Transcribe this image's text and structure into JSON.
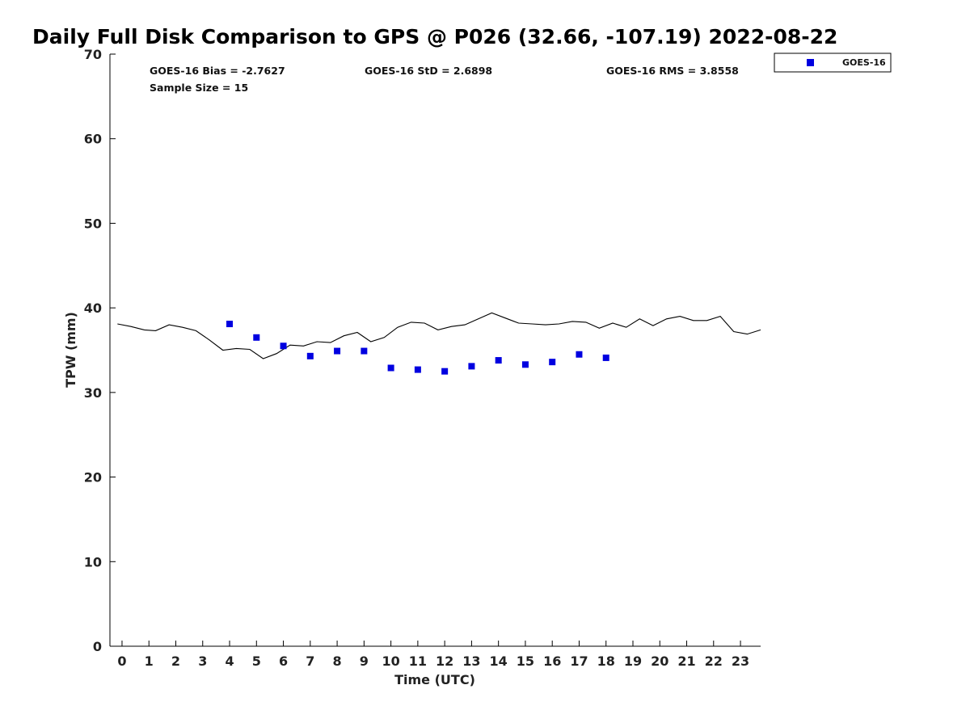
{
  "chart_data": {
    "type": "scatter",
    "title": "Daily Full Disk Comparison to GPS @ P026 (32.66, -107.19) 2022-08-22",
    "xlabel": "Time (UTC)",
    "ylabel": "TPW (mm)",
    "xlim": [
      -0.45,
      23.75
    ],
    "ylim": [
      0,
      70
    ],
    "x_ticks": [
      0,
      1,
      2,
      3,
      4,
      5,
      6,
      7,
      8,
      9,
      10,
      11,
      12,
      13,
      14,
      15,
      16,
      17,
      18,
      19,
      20,
      21,
      22,
      23
    ],
    "y_ticks": [
      0,
      10,
      20,
      30,
      40,
      50,
      60,
      70
    ],
    "grid": false,
    "legend_position": "top-right, outside plot",
    "annotations": {
      "bias": "GOES-16 Bias = -2.7627",
      "std": "GOES-16 StD = 2.6898",
      "rms": "GOES-16 RMS = 3.8558",
      "sample_size": "Sample Size = 15"
    },
    "series": [
      {
        "name": "GOES-16",
        "kind": "scatter",
        "marker": "square",
        "color": "#0000e0",
        "x": [
          4,
          5,
          6,
          7,
          8,
          9,
          10,
          11,
          12,
          13,
          14,
          15,
          16,
          17,
          18
        ],
        "y": [
          38.1,
          36.5,
          35.5,
          34.3,
          34.9,
          34.9,
          32.9,
          32.7,
          32.5,
          33.1,
          33.8,
          33.3,
          33.6,
          34.5,
          34.1
        ]
      },
      {
        "kind": "line",
        "color": "#000000",
        "x": [
          -0.17,
          0.33,
          0.83,
          1.25,
          1.75,
          2.25,
          2.75,
          3.25,
          3.75,
          4.25,
          4.75,
          5.25,
          5.75,
          6.25,
          6.75,
          7.25,
          7.75,
          8.25,
          8.75,
          9.25,
          9.75,
          10.25,
          10.75,
          11.25,
          11.75,
          12.25,
          12.75,
          13.25,
          13.75,
          14.25,
          14.75,
          15.25,
          15.75,
          16.25,
          16.75,
          17.25,
          17.75,
          18.25,
          18.75,
          19.25,
          19.75,
          20.25,
          20.75,
          21.25,
          21.75,
          22.25,
          22.75,
          23.25,
          23.75
        ],
        "y": [
          38.1,
          37.8,
          37.4,
          37.3,
          38.0,
          37.7,
          37.3,
          36.2,
          35.0,
          35.2,
          35.1,
          34.0,
          34.6,
          35.6,
          35.5,
          36.0,
          35.9,
          36.7,
          37.1,
          36.0,
          36.5,
          37.7,
          38.3,
          38.2,
          37.4,
          37.8,
          38.0,
          38.7,
          39.4,
          38.8,
          38.2,
          38.1,
          38.0,
          38.1,
          38.4,
          38.3,
          37.6,
          38.2,
          37.7,
          38.7,
          37.9,
          38.7,
          39.0,
          38.5,
          38.5,
          39.0,
          37.2,
          36.9,
          37.4
        ]
      }
    ]
  }
}
